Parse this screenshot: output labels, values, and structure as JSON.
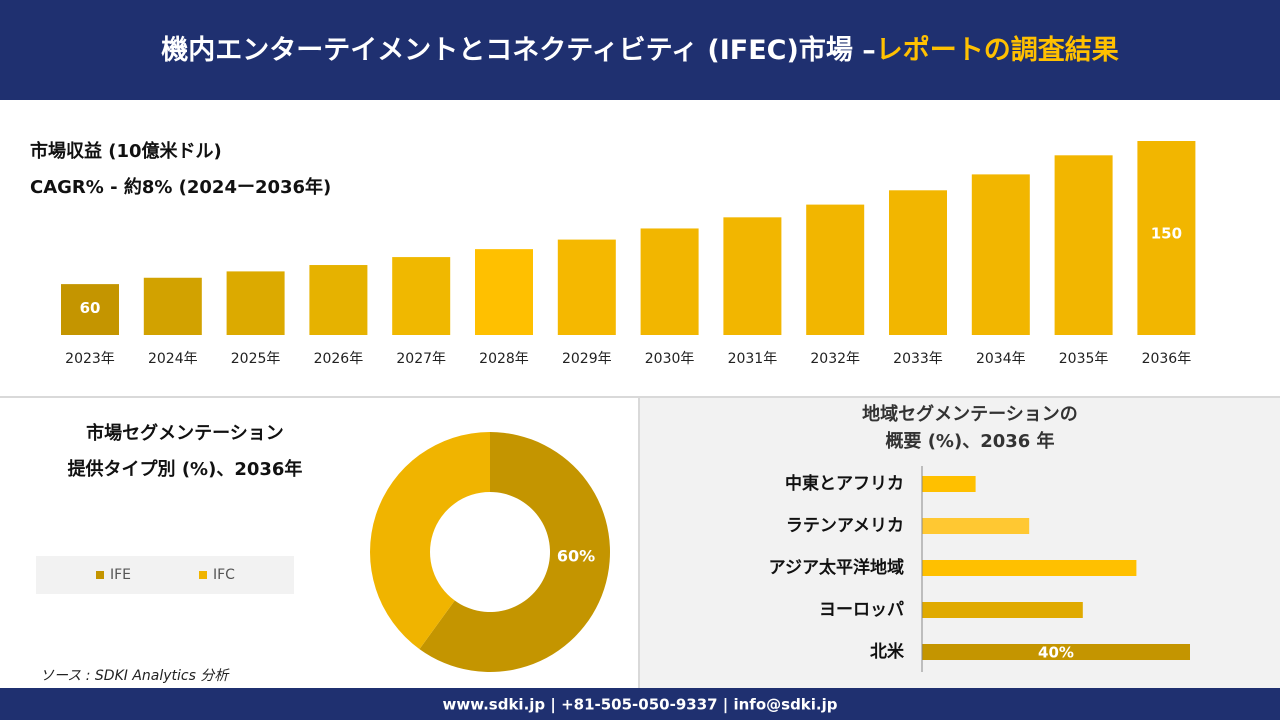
{
  "header": {
    "title": "機内エンターテイメントとコネクティビティ (IFEC)市場 –",
    "highlight": "レポートの調査結果"
  },
  "chart_data": [
    {
      "type": "bar",
      "title": "市場収益 (10億米ドル)",
      "subtitle": "CAGR% - 約8% (2024ー2036年)",
      "categories": [
        "2023年",
        "2024年",
        "2025年",
        "2026年",
        "2027年",
        "2028年",
        "2029年",
        "2030年",
        "2031年",
        "2032年",
        "2033年",
        "2034年",
        "2035年",
        "2036年"
      ],
      "values": [
        60,
        64,
        68,
        72,
        77,
        82,
        88,
        95,
        102,
        110,
        119,
        129,
        141,
        150
      ],
      "value_labels": [
        "60",
        null,
        null,
        null,
        null,
        null,
        null,
        null,
        null,
        null,
        null,
        null,
        null,
        "150"
      ],
      "colors": [
        "#c49500",
        "#d2a200",
        "#dcaa00",
        "#e6b200",
        "#f0b800",
        "#ffc000",
        "#f5b800",
        "#f2b600",
        "#f2b600",
        "#f2b600",
        "#f2b600",
        "#f2b600",
        "#f2b600",
        "#f2b600"
      ],
      "ylim": [
        28,
        150
      ]
    },
    {
      "type": "pie",
      "title": "市場セグメンテーション",
      "subtitle": "提供タイプ別 (%)、2036年",
      "labels": [
        "IFE",
        "IFC"
      ],
      "values": [
        60,
        40
      ],
      "value_labels": [
        "60%",
        null
      ],
      "colors": [
        "#c49500",
        "#f0b400"
      ]
    },
    {
      "type": "hbar",
      "title": "地域セグメンテーションの",
      "subtitle": "概要 (%)、2036 年",
      "categories": [
        "中東とアフリカ",
        "ラテンアメリカ",
        "アジア太平洋地域",
        "ヨーロッパ",
        "北米"
      ],
      "values": [
        8,
        16,
        32,
        24,
        40
      ],
      "value_labels": [
        null,
        null,
        null,
        null,
        "40%"
      ],
      "colors": [
        "#ffc000",
        "#ffc832",
        "#ffc000",
        "#e0aa00",
        "#c49500"
      ],
      "xlim": [
        0,
        40
      ]
    }
  ],
  "source": "ソース : SDKI Analytics 分析",
  "footer": "www.sdki.jp | +81-505-050-9337 | info@sdki.jp"
}
